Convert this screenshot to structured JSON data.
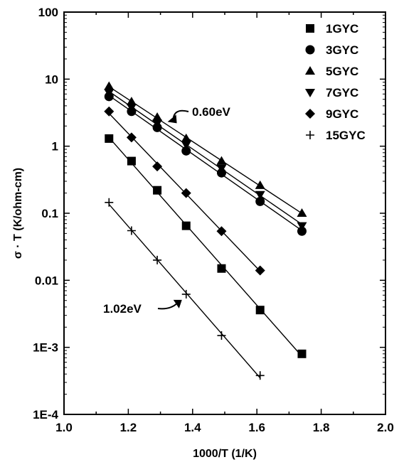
{
  "chart_data": {
    "type": "scatter",
    "xlabel": "1000/T (1/K)",
    "ylabel": "σ · T (K/ohm-cm)",
    "xlim": [
      1.0,
      2.0
    ],
    "ylim": [
      0.0001,
      100
    ],
    "y_scale": "log",
    "x_ticks": [
      "1.0",
      "1.2",
      "1.4",
      "1.6",
      "1.8",
      "2.0"
    ],
    "y_ticks": [
      "1E-4",
      "1E-3",
      "0.01",
      "0.1",
      "1",
      "10",
      "100"
    ],
    "legend_position": "top-right",
    "series": [
      {
        "name": "1GYC",
        "marker": "square",
        "x": [
          1.14,
          1.21,
          1.29,
          1.38,
          1.49,
          1.61,
          1.74
        ],
        "y": [
          1.3,
          0.6,
          0.22,
          0.065,
          0.015,
          0.0036,
          0.0008
        ]
      },
      {
        "name": "3GYC",
        "marker": "circle",
        "x": [
          1.14,
          1.21,
          1.29,
          1.38,
          1.49,
          1.61,
          1.74
        ],
        "y": [
          5.5,
          3.3,
          1.9,
          0.85,
          0.4,
          0.15,
          0.054
        ]
      },
      {
        "name": "5GYC",
        "marker": "triangle-up",
        "x": [
          1.14,
          1.21,
          1.29,
          1.38,
          1.49,
          1.61,
          1.74
        ],
        "y": [
          7.8,
          4.6,
          2.7,
          1.3,
          0.6,
          0.26,
          0.1
        ]
      },
      {
        "name": "7GYC",
        "marker": "triangle-down",
        "x": [
          1.14,
          1.21,
          1.29,
          1.38,
          1.49,
          1.61,
          1.74
        ],
        "y": [
          6.3,
          3.8,
          2.2,
          1.05,
          0.47,
          0.19,
          0.065
        ]
      },
      {
        "name": "9GYC",
        "marker": "diamond",
        "x": [
          1.14,
          1.21,
          1.29,
          1.38,
          1.49,
          1.61
        ],
        "y": [
          3.3,
          1.35,
          0.5,
          0.2,
          0.054,
          0.014
        ]
      },
      {
        "name": "15GYC",
        "marker": "plus",
        "x": [
          1.14,
          1.21,
          1.29,
          1.38,
          1.49,
          1.61
        ],
        "y": [
          0.145,
          0.055,
          0.02,
          0.0062,
          0.0015,
          0.00038
        ]
      }
    ],
    "annotations": [
      {
        "text": "0.60eV",
        "points_to": {
          "x": 1.3,
          "y": 2.2
        }
      },
      {
        "text": "1.02eV",
        "points_to": {
          "x": 1.38,
          "y": 0.0062
        }
      }
    ]
  }
}
